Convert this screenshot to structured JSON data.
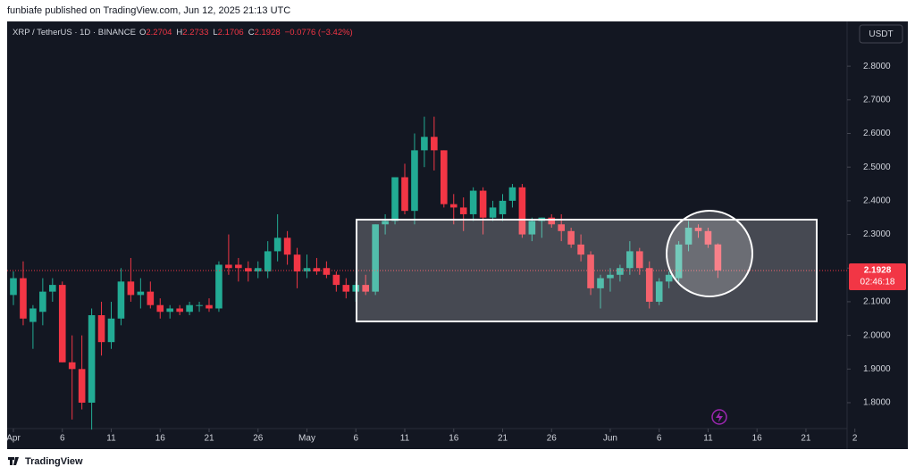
{
  "header": {
    "publisher": "funbiafe published on TradingView.com, Jun 12, 2025 21:13 UTC",
    "brand": "TradingView"
  },
  "chart_data": {
    "type": "candlestick",
    "title": "XRP / TetherUS · 1D · BINANCE",
    "currency": "USDT",
    "ohlc_labels": [
      "O",
      "H",
      "L",
      "C"
    ],
    "change": "−0.0776 (−3.42%)",
    "countdown": "02:46:18",
    "x": [
      "Apr 1",
      "Apr 2",
      "Apr 3",
      "Apr 4",
      "Apr 5",
      "Apr 6",
      "Apr 7",
      "Apr 8",
      "Apr 9",
      "Apr 10",
      "Apr 11",
      "Apr 12",
      "Apr 13",
      "Apr 14",
      "Apr 15",
      "Apr 16",
      "Apr 17",
      "Apr 18",
      "Apr 19",
      "Apr 20",
      "Apr 21",
      "Apr 22",
      "Apr 23",
      "Apr 24",
      "Apr 25",
      "Apr 26",
      "Apr 27",
      "Apr 28",
      "Apr 29",
      "Apr 30",
      "May 1",
      "May 2",
      "May 3",
      "May 4",
      "May 5",
      "May 6",
      "May 7",
      "May 8",
      "May 9",
      "May 10",
      "May 11",
      "May 12",
      "May 13",
      "May 14",
      "May 15",
      "May 16",
      "May 17",
      "May 18",
      "May 19",
      "May 20",
      "May 21",
      "May 22",
      "May 23",
      "May 24",
      "May 25",
      "May 26",
      "May 27",
      "May 28",
      "May 29",
      "May 30",
      "May 31",
      "Jun 1",
      "Jun 2",
      "Jun 3",
      "Jun 4",
      "Jun 5",
      "Jun 6",
      "Jun 7",
      "Jun 8",
      "Jun 9",
      "Jun 10",
      "Jun 11",
      "Jun 12"
    ],
    "open": [
      2.12,
      2.17,
      2.04,
      2.07,
      2.13,
      2.15,
      1.92,
      1.9,
      1.8,
      2.06,
      1.98,
      2.05,
      2.16,
      2.12,
      2.13,
      2.09,
      2.07,
      2.08,
      2.07,
      2.09,
      2.09,
      2.08,
      2.21,
      2.21,
      2.2,
      2.19,
      2.19,
      2.25,
      2.29,
      2.24,
      2.19,
      2.2,
      2.2,
      2.18,
      2.15,
      2.13,
      2.15,
      2.13,
      2.33,
      2.34,
      2.47,
      2.37,
      2.55,
      2.59,
      2.55,
      2.39,
      2.38,
      2.36,
      2.43,
      2.35,
      2.36,
      2.4,
      2.44,
      2.3,
      2.34,
      2.35,
      2.33,
      2.31,
      2.27,
      2.24,
      2.14,
      2.17,
      2.18,
      2.2,
      2.25,
      2.2,
      2.1,
      2.16,
      2.17,
      2.27,
      2.32,
      2.31,
      2.2704
    ],
    "high": [
      2.19,
      2.22,
      2.09,
      2.17,
      2.17,
      2.16,
      2.0,
      2.0,
      2.08,
      2.1,
      2.1,
      2.2,
      2.23,
      2.17,
      2.16,
      2.11,
      2.09,
      2.09,
      2.1,
      2.1,
      2.11,
      2.22,
      2.3,
      2.23,
      2.22,
      2.22,
      2.28,
      2.36,
      2.31,
      2.26,
      2.24,
      2.23,
      2.22,
      2.19,
      2.17,
      2.16,
      2.18,
      2.33,
      2.36,
      2.47,
      2.51,
      2.6,
      2.65,
      2.65,
      2.55,
      2.42,
      2.41,
      2.44,
      2.44,
      2.4,
      2.42,
      2.45,
      2.45,
      2.35,
      2.35,
      2.36,
      2.36,
      2.32,
      2.3,
      2.25,
      2.18,
      2.2,
      2.21,
      2.28,
      2.26,
      2.22,
      2.17,
      2.19,
      2.28,
      2.34,
      2.33,
      2.32,
      2.2733
    ],
    "low": [
      2.09,
      2.03,
      1.96,
      2.03,
      2.1,
      1.92,
      1.75,
      1.78,
      1.72,
      1.94,
      1.96,
      2.03,
      2.1,
      2.08,
      2.08,
      2.05,
      2.05,
      2.06,
      2.06,
      2.07,
      2.07,
      2.07,
      2.18,
      2.16,
      2.16,
      2.17,
      2.17,
      2.22,
      2.21,
      2.14,
      2.17,
      2.18,
      2.17,
      2.13,
      2.11,
      2.1,
      2.12,
      2.12,
      2.3,
      2.33,
      2.36,
      2.33,
      2.5,
      2.49,
      2.38,
      2.33,
      2.31,
      2.34,
      2.3,
      2.34,
      2.34,
      2.38,
      2.29,
      2.28,
      2.29,
      2.32,
      2.28,
      2.26,
      2.22,
      2.12,
      2.08,
      2.13,
      2.16,
      2.18,
      2.18,
      2.08,
      2.09,
      2.14,
      2.16,
      2.25,
      2.29,
      2.26,
      2.1706
    ],
    "close": [
      2.17,
      2.05,
      2.08,
      2.13,
      2.15,
      1.92,
      1.9,
      1.8,
      2.06,
      1.98,
      2.05,
      2.16,
      2.12,
      2.13,
      2.09,
      2.07,
      2.08,
      2.07,
      2.09,
      2.09,
      2.08,
      2.21,
      2.2,
      2.2,
      2.19,
      2.2,
      2.25,
      2.29,
      2.24,
      2.19,
      2.2,
      2.19,
      2.18,
      2.15,
      2.13,
      2.15,
      2.13,
      2.33,
      2.34,
      2.47,
      2.37,
      2.55,
      2.59,
      2.55,
      2.39,
      2.38,
      2.36,
      2.43,
      2.35,
      2.38,
      2.4,
      2.44,
      2.3,
      2.34,
      2.35,
      2.33,
      2.31,
      2.27,
      2.24,
      2.14,
      2.17,
      2.18,
      2.2,
      2.25,
      2.2,
      2.1,
      2.16,
      2.18,
      2.27,
      2.32,
      2.31,
      2.27,
      2.1928
    ],
    "up_color": "#22ab94",
    "down_color": "#f23645",
    "ylim": [
      1.67,
      2.933
    ],
    "yticks": [
      {
        "value": 1.8,
        "label": "1.8000"
      },
      {
        "value": 1.9,
        "label": "1.9000"
      },
      {
        "value": 2,
        "label": "2.0000"
      },
      {
        "value": 2.1,
        "label": "2.1000"
      },
      {
        "value": 2.2,
        "label": "2.2000"
      },
      {
        "value": 2.3,
        "label": "2.3000"
      },
      {
        "value": 2.4,
        "label": "2.4000"
      },
      {
        "value": 2.5,
        "label": "2.5000"
      },
      {
        "value": 2.6,
        "label": "2.6000"
      },
      {
        "value": 2.7,
        "label": "2.7000"
      },
      {
        "value": 2.8,
        "label": "2.8000"
      }
    ],
    "xticks": [
      {
        "value": "Apr 1",
        "label": "Apr"
      },
      {
        "value": "Apr 6",
        "label": "6"
      },
      {
        "value": "Apr 11",
        "label": "11"
      },
      {
        "value": "Apr 16",
        "label": "16"
      },
      {
        "value": "Apr 21",
        "label": "21"
      },
      {
        "value": "Apr 26",
        "label": "26"
      },
      {
        "value": "May 1",
        "label": "May"
      },
      {
        "value": "May 6",
        "label": "6"
      },
      {
        "value": "May 11",
        "label": "11"
      },
      {
        "value": "May 16",
        "label": "16"
      },
      {
        "value": "May 21",
        "label": "21"
      },
      {
        "value": "May 26",
        "label": "26"
      },
      {
        "value": "Jun 1",
        "label": "Jun"
      },
      {
        "value": "Jun 6",
        "label": "6"
      },
      {
        "value": "Jun 11",
        "label": "11"
      },
      {
        "value": "Jun 16",
        "label": "16"
      },
      {
        "value": "Jun 21",
        "label": "21"
      },
      {
        "value": "Jun 26",
        "label": "2"
      }
    ]
  }
}
